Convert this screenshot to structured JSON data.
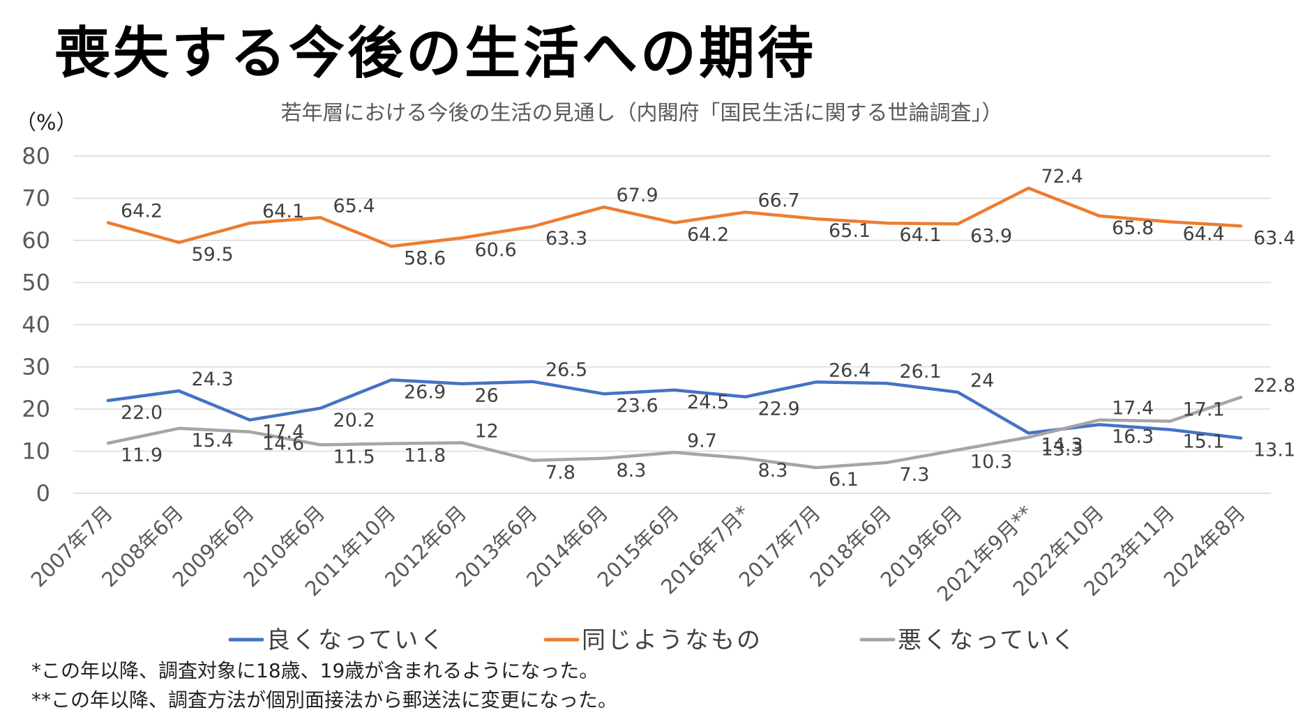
{
  "page_title": "喪失する今後の生活への期待",
  "colors": {
    "good": "#4472C4",
    "same": "#ED7D31",
    "bad": "#A5A5A5",
    "grid": "#D9D9D9",
    "axis_text": "#595959"
  },
  "chart_data": {
    "type": "line",
    "title": "若年層における今後の生活の見通し（内閣府「国民生活に関する世論調査」）",
    "ylabel": "（%）",
    "xlabel": "",
    "ylim": [
      0,
      80
    ],
    "yticks": [
      "0",
      "10",
      "20",
      "30",
      "40",
      "50",
      "60",
      "70",
      "80"
    ],
    "grid": true,
    "legend_position": "bottom",
    "categories": [
      "2007年7月",
      "2008年6月",
      "2009年6月",
      "2010年6月",
      "2011年10月",
      "2012年6月",
      "2013年6月",
      "2014年6月",
      "2015年6月",
      "2016年7月*",
      "2017年7月",
      "2018年6月",
      "2019年6月",
      "2021年9月**",
      "2022年10月",
      "2023年11月",
      "2024年8月"
    ],
    "series": [
      {
        "name": "良くなっていく",
        "key": "good",
        "values": [
          22.0,
          24.3,
          17.4,
          20.2,
          26.9,
          26,
          26.5,
          23.6,
          24.5,
          22.9,
          26.4,
          26.1,
          24,
          14.3,
          16.3,
          15.1,
          13.1
        ],
        "labels": [
          "22.0",
          "24.3",
          "17.4",
          "20.2",
          "26.9",
          "26",
          "26.5",
          "23.6",
          "24.5",
          "22.9",
          "26.4",
          "26.1",
          "24",
          "14.3",
          "16.3",
          "15.1",
          "13.1"
        ]
      },
      {
        "name": "同じようなもの",
        "key": "same",
        "values": [
          64.2,
          59.5,
          64.1,
          65.4,
          58.6,
          60.6,
          63.3,
          67.9,
          64.2,
          66.7,
          65.1,
          64.1,
          63.9,
          72.4,
          65.8,
          64.4,
          63.4
        ],
        "labels": [
          "64.2",
          "59.5",
          "64.1",
          "65.4",
          "58.6",
          "60.6",
          "63.3",
          "67.9",
          "64.2",
          "66.7",
          "65.1",
          "64.1",
          "63.9",
          "72.4",
          "65.8",
          "64.4",
          "63.4"
        ]
      },
      {
        "name": "悪くなっていく",
        "key": "bad",
        "values": [
          11.9,
          15.4,
          14.6,
          11.5,
          11.8,
          12,
          7.8,
          8.3,
          9.7,
          8.3,
          6.1,
          7.3,
          10.3,
          13.3,
          17.4,
          17.1,
          22.8
        ],
        "labels": [
          "11.9",
          "15.4",
          "14.6",
          "11.5",
          "11.8",
          "12",
          "7.8",
          "8.3",
          "9.7",
          "8.3",
          "6.1",
          "7.3",
          "10.3",
          "13.3",
          "17.4",
          "17.1",
          "22.8"
        ]
      }
    ]
  },
  "notes": [
    "*この年以降、調査対象に18歳、19歳が含まれるようになった。",
    "**この年以降、調査方法が個別面接法から郵送法に変更になった。"
  ]
}
